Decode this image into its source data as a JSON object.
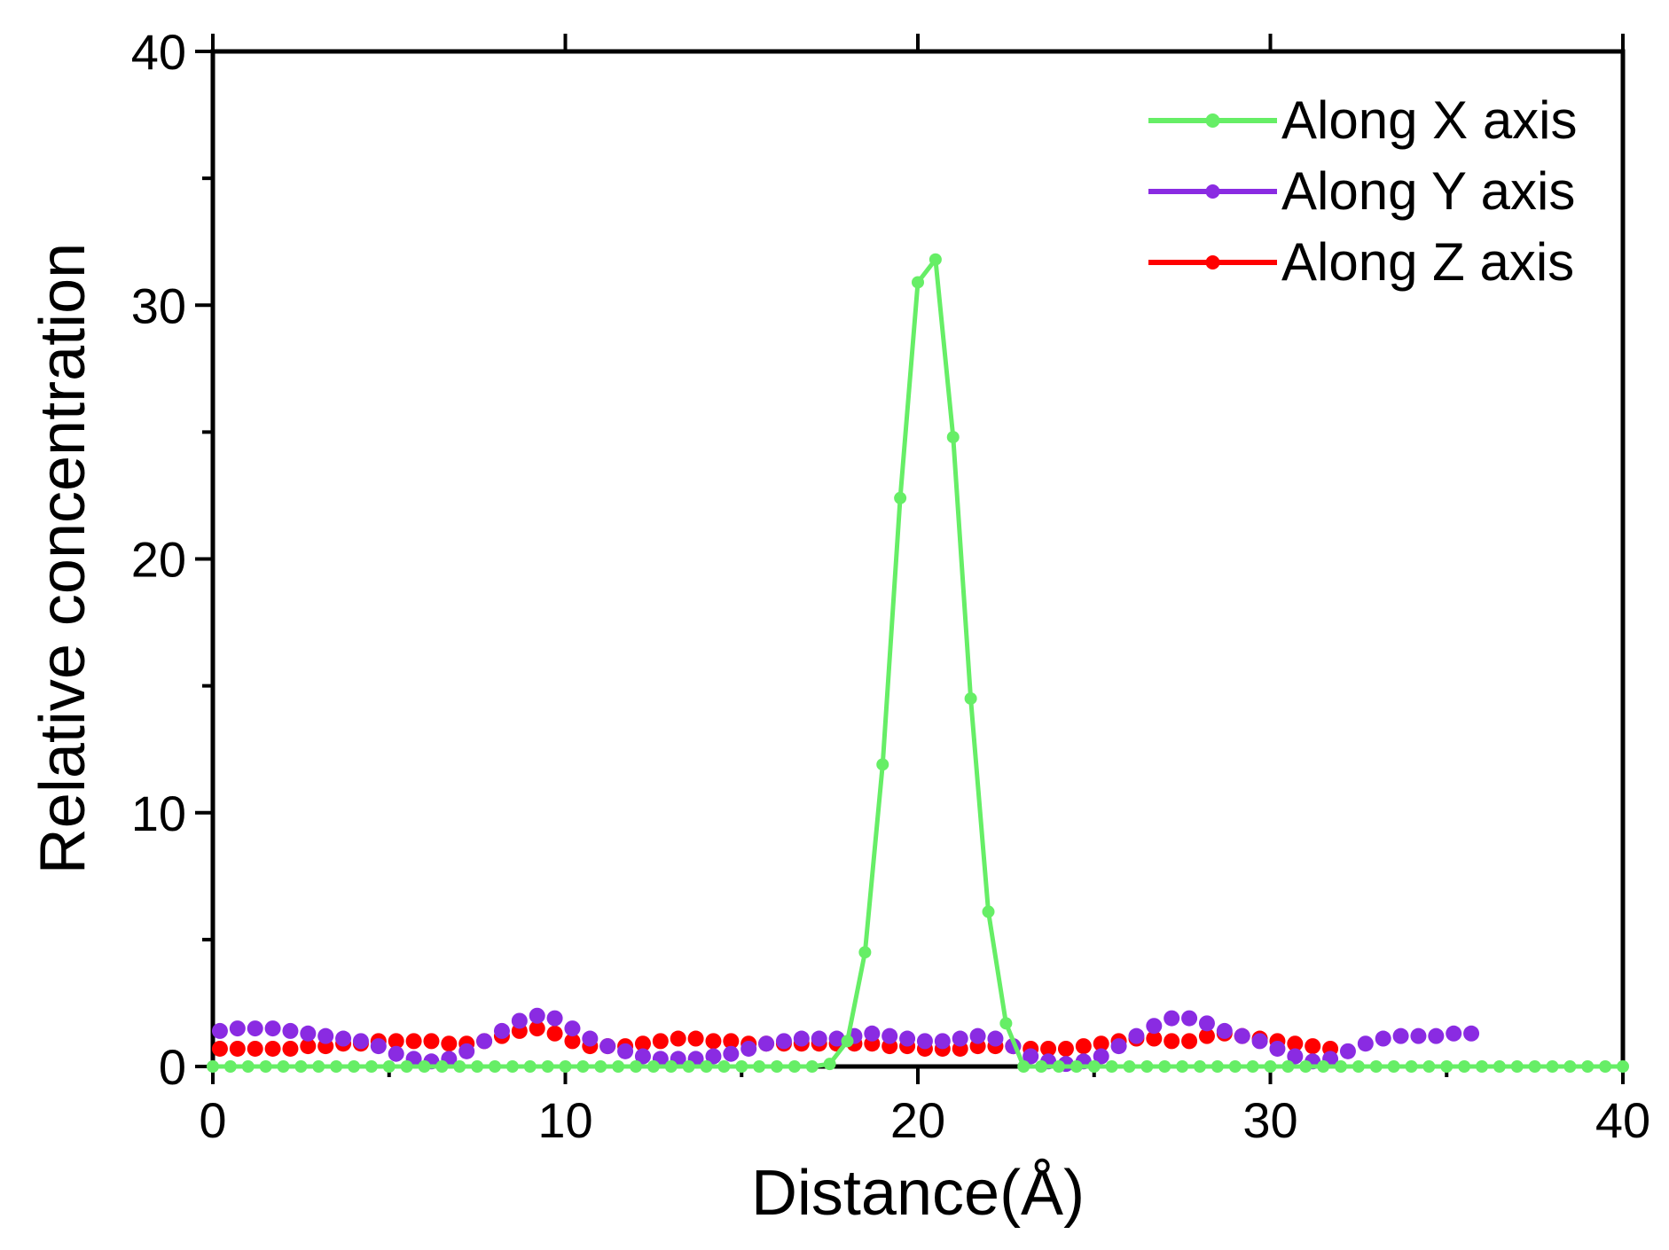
{
  "chart_data": {
    "type": "line",
    "xlabel": "Distance(Å)",
    "ylabel": "Relative concentration",
    "xlim": [
      0,
      40
    ],
    "ylim": [
      0,
      40
    ],
    "x_ticks": [
      0,
      10,
      20,
      30,
      40
    ],
    "y_ticks": [
      0,
      10,
      20,
      30,
      40
    ],
    "grid": false,
    "legend_position": "top-right",
    "series": [
      {
        "name": "Along X axis",
        "color": "#66ee66",
        "marker": "circle",
        "line": true,
        "x": [
          0,
          0.5,
          1,
          1.5,
          2,
          2.5,
          3,
          3.5,
          4,
          4.5,
          5,
          5.5,
          6,
          6.5,
          7,
          7.5,
          8,
          8.5,
          9,
          9.5,
          10,
          10.5,
          11,
          11.5,
          12,
          12.5,
          13,
          13.5,
          14,
          14.5,
          15,
          15.5,
          16,
          16.5,
          17,
          17.5,
          18,
          18.5,
          19,
          19.5,
          20,
          20.5,
          21,
          21.5,
          22,
          22.5,
          23,
          23.5,
          24,
          24.5,
          25,
          25.5,
          26,
          26.5,
          27,
          27.5,
          28,
          28.5,
          29,
          29.5,
          30,
          30.5,
          31,
          31.5,
          32,
          32.5,
          33,
          33.5,
          34,
          34.5,
          35,
          35.5,
          36,
          36.5,
          37,
          37.5,
          38,
          38.5,
          39,
          39.5,
          40
        ],
        "y": [
          0,
          0,
          0,
          0,
          0,
          0,
          0,
          0,
          0,
          0,
          0,
          0,
          0,
          0,
          0,
          0,
          0,
          0,
          0,
          0,
          0,
          0,
          0,
          0,
          0,
          0,
          0,
          0,
          0,
          0,
          0,
          0,
          0,
          0,
          0,
          0.1,
          1.0,
          4.5,
          11.9,
          22.4,
          30.9,
          31.8,
          24.8,
          14.5,
          6.1,
          1.7,
          0,
          0,
          0,
          0,
          0,
          0,
          0,
          0,
          0,
          0,
          0,
          0,
          0,
          0,
          0,
          0,
          0,
          0,
          0,
          0,
          0,
          0,
          0,
          0,
          0,
          0,
          0,
          0,
          0,
          0,
          0,
          0,
          0,
          0,
          0
        ]
      },
      {
        "name": "Along Y axis",
        "color": "#8a2be2",
        "marker": "circle",
        "line": false,
        "x": [
          0.2,
          0.7,
          1.2,
          1.7,
          2.2,
          2.7,
          3.2,
          3.7,
          4.2,
          4.7,
          5.2,
          5.7,
          6.2,
          6.7,
          7.2,
          7.7,
          8.2,
          8.7,
          9.2,
          9.7,
          10.2,
          10.7,
          11.2,
          11.7,
          12.2,
          12.7,
          13.2,
          13.7,
          14.2,
          14.7,
          15.2,
          15.7,
          16.2,
          16.7,
          17.2,
          17.7,
          18.2,
          18.7,
          19.2,
          19.7,
          20.2,
          20.7,
          21.2,
          21.7,
          22.2,
          22.7,
          23.2,
          23.7,
          24.2,
          24.7,
          25.2,
          25.7,
          26.2,
          26.7,
          27.2,
          27.7,
          28.2,
          28.7,
          29.2,
          29.7,
          30.2,
          30.7,
          31.2,
          31.7,
          32.2,
          32.7,
          33.2,
          33.7,
          34.2,
          34.7,
          35.2,
          35.7
        ],
        "y": [
          1.4,
          1.5,
          1.5,
          1.5,
          1.4,
          1.3,
          1.2,
          1.1,
          1.0,
          0.8,
          0.5,
          0.3,
          0.2,
          0.3,
          0.6,
          1.0,
          1.4,
          1.8,
          2.0,
          1.9,
          1.5,
          1.1,
          0.8,
          0.6,
          0.4,
          0.3,
          0.3,
          0.3,
          0.4,
          0.5,
          0.7,
          0.9,
          1.0,
          1.1,
          1.1,
          1.1,
          1.2,
          1.3,
          1.2,
          1.1,
          1.0,
          1.0,
          1.1,
          1.2,
          1.1,
          0.8,
          0.4,
          0.2,
          0.1,
          0.2,
          0.4,
          0.8,
          1.2,
          1.6,
          1.9,
          1.9,
          1.7,
          1.4,
          1.2,
          1.0,
          0.7,
          0.4,
          0.2,
          0.3,
          0.6,
          0.9,
          1.1,
          1.2,
          1.2,
          1.2,
          1.3,
          1.3
        ]
      },
      {
        "name": "Along Z axis",
        "color": "#ff0000",
        "marker": "circle",
        "line": false,
        "x": [
          0.2,
          0.7,
          1.2,
          1.7,
          2.2,
          2.7,
          3.2,
          3.7,
          4.2,
          4.7,
          5.2,
          5.7,
          6.2,
          6.7,
          7.2,
          7.7,
          8.2,
          8.7,
          9.2,
          9.7,
          10.2,
          10.7,
          11.2,
          11.7,
          12.2,
          12.7,
          13.2,
          13.7,
          14.2,
          14.7,
          15.2,
          15.7,
          16.2,
          16.7,
          17.2,
          17.7,
          18.2,
          18.7,
          19.2,
          19.7,
          20.2,
          20.7,
          21.2,
          21.7,
          22.2,
          22.7,
          23.2,
          23.7,
          24.2,
          24.7,
          25.2,
          25.7,
          26.2,
          26.7,
          27.2,
          27.7,
          28.2,
          28.7,
          29.2,
          29.7,
          30.2,
          30.7,
          31.2,
          31.7
        ],
        "y": [
          0.7,
          0.7,
          0.7,
          0.7,
          0.7,
          0.8,
          0.8,
          0.9,
          0.9,
          1.0,
          1.0,
          1.0,
          1.0,
          0.9,
          0.9,
          1.0,
          1.2,
          1.4,
          1.5,
          1.3,
          1.0,
          0.8,
          0.8,
          0.8,
          0.9,
          1.0,
          1.1,
          1.1,
          1.0,
          1.0,
          0.9,
          0.9,
          0.9,
          0.9,
          0.9,
          0.9,
          0.9,
          0.9,
          0.8,
          0.8,
          0.7,
          0.7,
          0.7,
          0.8,
          0.8,
          0.8,
          0.7,
          0.7,
          0.7,
          0.8,
          0.9,
          1.0,
          1.1,
          1.1,
          1.0,
          1.0,
          1.2,
          1.3,
          1.2,
          1.1,
          1.0,
          0.9,
          0.8,
          0.7
        ]
      }
    ]
  }
}
